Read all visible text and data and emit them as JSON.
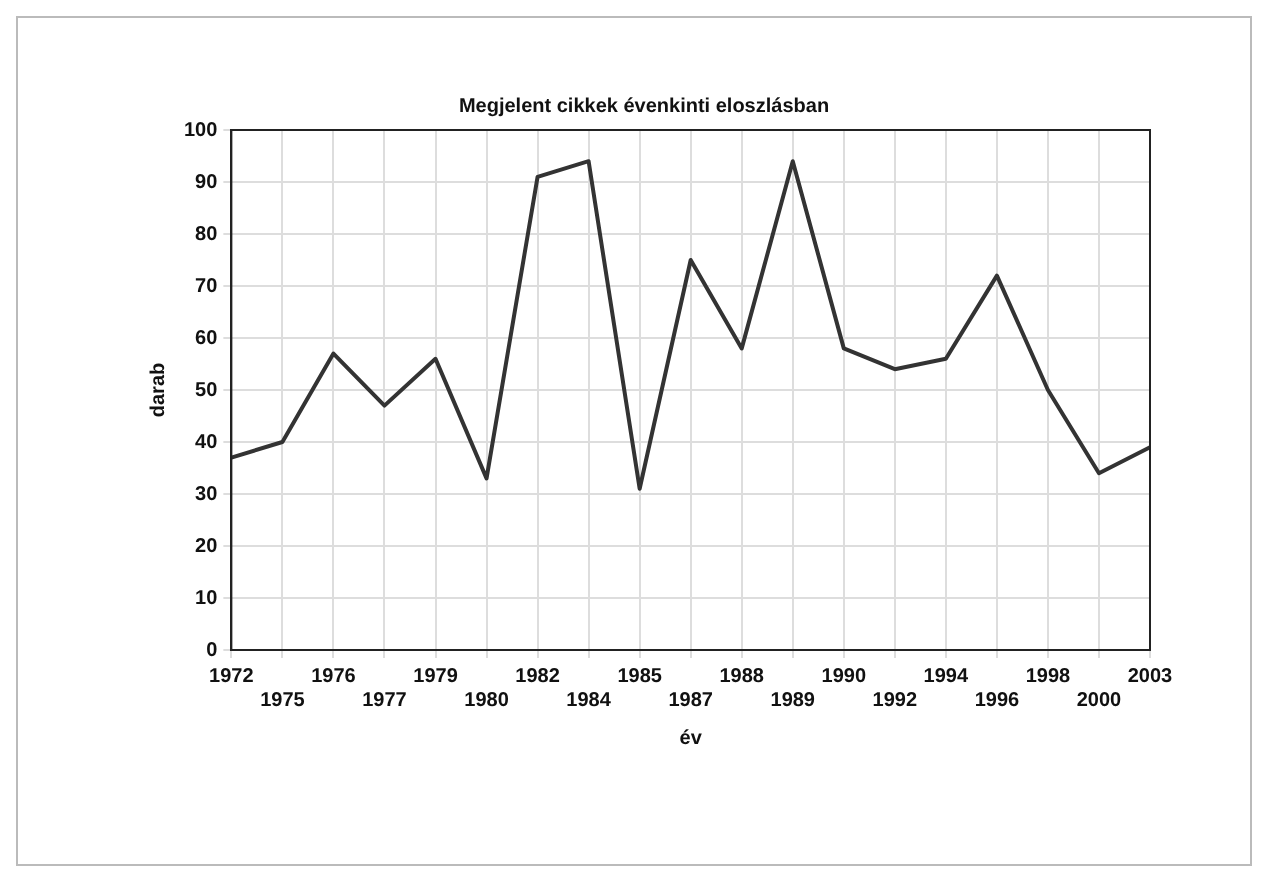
{
  "chart_data": {
    "type": "line",
    "title": "Megjelent cikkek évenkinti eloszlásban",
    "xlabel": "év",
    "ylabel": "darab",
    "categories": [
      "1972",
      "1975",
      "1976",
      "1977",
      "1979",
      "1980",
      "1982",
      "1984",
      "1985",
      "1987",
      "1988",
      "1989",
      "1990",
      "1992",
      "1994",
      "1996",
      "1998",
      "2000",
      "2003"
    ],
    "series": [
      {
        "color": "#333333",
        "values": [
          37,
          40,
          57,
          47,
          56,
          33,
          91,
          94,
          31,
          75,
          58,
          94,
          58,
          54,
          56,
          72,
          50,
          34,
          39
        ]
      }
    ],
    "ylim": [
      0,
      100
    ],
    "yticks": [
      0,
      10,
      20,
      30,
      40,
      50,
      60,
      70,
      80,
      90,
      100
    ],
    "grid": true,
    "marker": "none",
    "line_style": "solid"
  }
}
